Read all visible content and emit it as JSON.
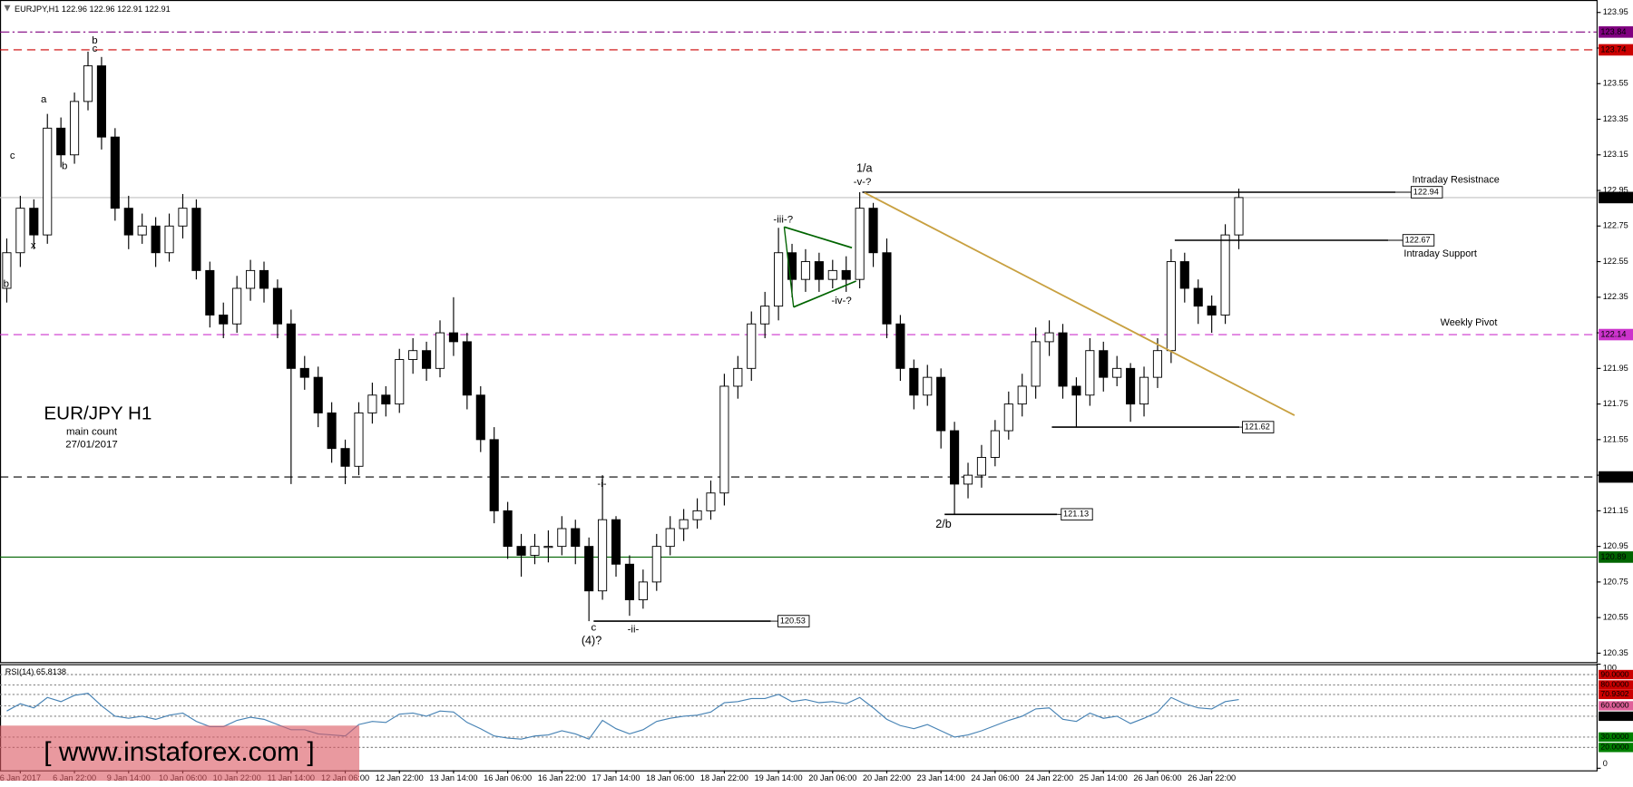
{
  "chart_data": {
    "type": "candlestick",
    "title": "EURJPY,H1  122.96 122.96 122.91 122.91",
    "up_color": "#ffffff",
    "down_color": "#000000",
    "categories": [
      null,
      "6 Jan 2017",
      null,
      null,
      null,
      "6 Jan 22:00",
      null,
      null,
      null,
      "9 Jan 14:00",
      null,
      null,
      null,
      "10 Jan 06:00",
      null,
      null,
      null,
      "10 Jan 22:00",
      null,
      null,
      null,
      "11 Jan 14:00",
      null,
      null,
      null,
      "12 Jan 06:00",
      null,
      null,
      null,
      "12 Jan 22:00",
      null,
      null,
      null,
      "13 Jan 14:00",
      null,
      null,
      null,
      "16 Jan 06:00",
      null,
      null,
      null,
      "16 Jan 22:00",
      null,
      null,
      null,
      "17 Jan 14:00",
      null,
      null,
      null,
      "18 Jan 06:00",
      null,
      null,
      null,
      "18 Jan 22:00",
      null,
      null,
      null,
      "19 Jan 14:00",
      null,
      null,
      null,
      "20 Jan 06:00",
      null,
      null,
      null,
      "20 Jan 22:00",
      null,
      null,
      null,
      "23 Jan 14:00",
      null,
      null,
      null,
      "24 Jan 06:00",
      null,
      null,
      null,
      "24 Jan 22:00",
      null,
      null,
      null,
      "25 Jan 14:00",
      null,
      null,
      null,
      "26 Jan 06:00",
      null,
      null,
      null,
      "26 Jan 22:00",
      null,
      null
    ],
    "open": [
      122.4,
      122.6,
      122.85,
      122.7,
      123.3,
      123.15,
      123.45,
      123.65,
      123.25,
      122.85,
      122.7,
      122.75,
      122.6,
      122.75,
      122.85,
      122.5,
      122.25,
      122.2,
      122.4,
      122.5,
      122.4,
      122.2,
      121.95,
      121.9,
      121.7,
      121.5,
      121.4,
      121.7,
      121.8,
      121.75,
      122.0,
      122.05,
      121.95,
      122.15,
      122.1,
      121.8,
      121.55,
      121.15,
      120.95,
      120.9,
      120.95,
      120.95,
      121.05,
      120.95,
      120.7,
      121.1,
      120.85,
      120.65,
      120.75,
      120.95,
      121.05,
      121.1,
      121.15,
      121.25,
      121.85,
      121.95,
      122.2,
      122.3,
      122.6,
      122.45,
      122.55,
      122.45,
      122.5,
      122.45,
      122.85,
      122.6,
      122.2,
      121.95,
      121.8,
      121.9,
      121.6,
      121.3,
      121.35,
      121.45,
      121.6,
      121.75,
      121.85,
      122.1,
      122.15,
      121.85,
      121.8,
      122.05,
      121.9,
      121.95,
      121.75,
      121.9,
      122.05,
      122.55,
      122.4,
      122.3,
      122.25,
      122.7
    ],
    "high": [
      122.68,
      122.92,
      122.9,
      123.38,
      123.36,
      123.5,
      123.73,
      123.7,
      123.3,
      122.92,
      122.82,
      122.8,
      122.82,
      122.93,
      122.9,
      122.55,
      122.32,
      122.47,
      122.56,
      122.55,
      122.45,
      122.28,
      122.02,
      121.96,
      121.76,
      121.55,
      121.76,
      121.87,
      121.85,
      122.06,
      122.12,
      122.1,
      122.22,
      122.35,
      122.15,
      121.85,
      121.62,
      121.2,
      121.02,
      121.02,
      121.04,
      121.12,
      121.1,
      121.0,
      121.35,
      121.12,
      120.9,
      120.82,
      121.02,
      121.12,
      121.16,
      121.22,
      121.32,
      121.92,
      122.02,
      122.27,
      122.38,
      122.74,
      122.65,
      122.62,
      122.6,
      122.56,
      122.58,
      122.94,
      122.88,
      122.68,
      122.25,
      122.0,
      121.97,
      121.95,
      121.65,
      121.42,
      121.52,
      121.66,
      121.82,
      121.92,
      122.18,
      122.22,
      122.2,
      121.9,
      122.12,
      122.1,
      122.02,
      121.98,
      121.96,
      122.12,
      122.62,
      122.6,
      122.45,
      122.36,
      122.76,
      122.96
    ],
    "low": [
      122.32,
      122.52,
      122.62,
      122.65,
      123.08,
      123.1,
      123.4,
      123.18,
      122.78,
      122.62,
      122.65,
      122.52,
      122.55,
      122.68,
      122.45,
      122.18,
      122.12,
      122.15,
      122.33,
      122.32,
      122.12,
      121.3,
      121.83,
      121.62,
      121.42,
      121.3,
      121.35,
      121.64,
      121.68,
      121.7,
      121.92,
      121.88,
      121.9,
      122.02,
      121.72,
      121.48,
      121.08,
      120.88,
      120.78,
      120.85,
      120.86,
      120.9,
      120.85,
      120.53,
      120.65,
      120.78,
      120.56,
      120.6,
      120.7,
      120.9,
      120.98,
      121.05,
      121.1,
      121.18,
      121.78,
      121.88,
      122.12,
      122.22,
      122.35,
      122.38,
      122.38,
      122.4,
      122.38,
      122.4,
      122.52,
      122.12,
      121.88,
      121.72,
      121.74,
      121.5,
      121.13,
      121.22,
      121.28,
      121.4,
      121.55,
      121.68,
      121.78,
      122.02,
      121.78,
      121.62,
      121.74,
      121.82,
      121.85,
      121.65,
      121.68,
      121.84,
      121.98,
      122.32,
      122.2,
      122.15,
      122.2,
      122.62
    ],
    "close": [
      122.6,
      122.85,
      122.7,
      123.3,
      123.15,
      123.45,
      123.65,
      123.25,
      122.85,
      122.7,
      122.75,
      122.6,
      122.75,
      122.85,
      122.5,
      122.25,
      122.2,
      122.4,
      122.5,
      122.4,
      122.2,
      121.95,
      121.9,
      121.7,
      121.5,
      121.4,
      121.7,
      121.8,
      121.75,
      122.0,
      122.05,
      121.95,
      122.15,
      122.1,
      121.8,
      121.55,
      121.15,
      120.95,
      120.9,
      120.95,
      120.95,
      121.05,
      120.95,
      120.7,
      121.1,
      120.85,
      120.65,
      120.75,
      120.95,
      121.05,
      121.1,
      121.15,
      121.25,
      121.85,
      121.95,
      122.2,
      122.3,
      122.6,
      122.45,
      122.55,
      122.45,
      122.5,
      122.45,
      122.85,
      122.6,
      122.2,
      121.95,
      121.8,
      121.9,
      121.6,
      121.3,
      121.35,
      121.45,
      121.6,
      121.75,
      121.85,
      122.1,
      122.15,
      121.85,
      121.8,
      122.05,
      121.9,
      121.95,
      121.75,
      121.9,
      122.05,
      122.55,
      122.4,
      122.3,
      122.25,
      122.7,
      122.91
    ],
    "ylim": [
      120.3,
      124.02
    ],
    "yticks": [
      123.95,
      123.75,
      123.55,
      123.35,
      123.15,
      122.95,
      122.75,
      122.55,
      122.35,
      122.15,
      121.95,
      121.75,
      121.55,
      121.35,
      121.15,
      120.95,
      120.75,
      120.55,
      120.35
    ],
    "levels": [
      {
        "value": 123.84,
        "color": "#800080",
        "style": "dashdot"
      },
      {
        "value": 123.74,
        "color": "#cc0000",
        "style": "dash"
      },
      {
        "value": 122.91,
        "color": "#000000",
        "line_color": "#c0c0c0",
        "style": "solid"
      },
      {
        "value": 122.14,
        "color": "#cc33cc",
        "style": "dash"
      },
      {
        "value": 121.34,
        "color": "#000000",
        "style": "dash"
      },
      {
        "value": 120.89,
        "color": "#006400",
        "style": "solid"
      }
    ],
    "segments": [
      122.94,
      122.67,
      121.62,
      121.13,
      120.53
    ],
    "notes": [
      "Intraday Resistnace",
      "Intraday Support",
      "Weekly Pivot"
    ],
    "annotations": [
      "b",
      "c",
      "a",
      "b",
      "c",
      "x",
      "b",
      "1/a",
      "-v-?",
      "-iii-?",
      "-iv-?",
      "-i-",
      "c",
      "-ii-",
      "(4)?",
      "2/b"
    ],
    "chart_label": "EUR/JPY H1",
    "subtitle": "main  count",
    "date": "27/01/2017",
    "watermark": "[ www.instaforex.com ]",
    "rsi": {
      "type": "line",
      "label": "RSI(14) 65.8138",
      "color": "#4682b4",
      "ylim": [
        0,
        100
      ],
      "yticks": [
        100,
        0
      ],
      "values": [
        55,
        62,
        58,
        68,
        64,
        70,
        72,
        60,
        50,
        48,
        50,
        47,
        51,
        53,
        45,
        40,
        40,
        46,
        49,
        47,
        42,
        37,
        37,
        33,
        32,
        31,
        42,
        45,
        44,
        52,
        53,
        50,
        55,
        54,
        44,
        38,
        31,
        29,
        28,
        31,
        32,
        36,
        33,
        28,
        46,
        38,
        33,
        37,
        45,
        48,
        50,
        51,
        54,
        63,
        64,
        67,
        67,
        71,
        64,
        66,
        63,
        64,
        62,
        68,
        58,
        47,
        41,
        38,
        42,
        36,
        30,
        32,
        36,
        41,
        46,
        50,
        57,
        58,
        47,
        45,
        53,
        48,
        50,
        43,
        48,
        54,
        68,
        62,
        58,
        57,
        64,
        66
      ],
      "levels": [
        {
          "value": 90,
          "label": "90.0000",
          "color": "#cc0000"
        },
        {
          "value": 80,
          "label": "80.0000",
          "color": "#cc0000"
        },
        {
          "value": 70.9302,
          "label": "70.9302",
          "color": "#cc0000"
        },
        {
          "value": 60,
          "label": "60.0000",
          "color": "#e0609a"
        },
        {
          "value": 50,
          "label": "50.0000",
          "color": "#000000"
        },
        {
          "value": 30,
          "label": "30.0000",
          "color": "#008000"
        },
        {
          "value": 20,
          "label": "20.0000",
          "color": "#008000"
        }
      ]
    }
  }
}
